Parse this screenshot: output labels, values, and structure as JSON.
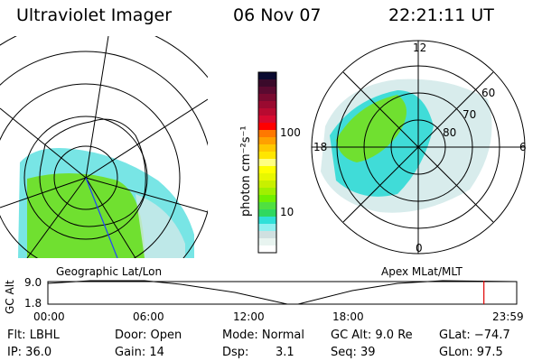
{
  "header": {
    "instrument": "Ultraviolet Imager",
    "date": "06 Nov 07",
    "time": "22:21:11 UT"
  },
  "colorbar": {
    "label": "photon cm⁻²s⁻¹",
    "ticks": [
      "100",
      "10"
    ],
    "colors": [
      "#0a0a30",
      "#3a0a2a",
      "#5a0a30",
      "#7a0a30",
      "#9a0a30",
      "#b80a30",
      "#d80a30",
      "#ff0000",
      "#ff7800",
      "#ffa000",
      "#ffc800",
      "#ffe600",
      "#ffff80",
      "#ffff00",
      "#e8f800",
      "#c8f000",
      "#a0f000",
      "#70f000",
      "#50e040",
      "#30d860",
      "#30e0d8",
      "#90f0f0",
      "#d0e0e0",
      "#e8f4f0",
      "#ffffff"
    ]
  },
  "geo_map": {
    "label": "Geographic Lat/Lon"
  },
  "apex_map": {
    "label": "Apex MLat/MLT",
    "mlt_labels": [
      "12",
      "18",
      "6",
      "0"
    ],
    "mlat_labels": [
      "60",
      "70",
      "80"
    ]
  },
  "timeline": {
    "ylabel": "GC Alt",
    "y_ticks": [
      "9.0",
      "1.8"
    ],
    "x_ticks": [
      "00:00",
      "06:00",
      "12:00",
      "18:00",
      "23:59"
    ],
    "current_time_fraction": 0.93,
    "marker_color": "#e00000"
  },
  "info": {
    "filter": "Flt: LBHL",
    "ip": "IP: 36.0",
    "door": "Door: Open",
    "gain": "Gain: 14",
    "mode": "Mode: Normal",
    "dsp_label": "Dsp:",
    "dsp_value": "3.1",
    "gc_alt": "GC Alt: 9.0 Re",
    "seq": "Seq: 39",
    "glat": "GLat: −74.7",
    "glon": "GLon:  97.5"
  }
}
